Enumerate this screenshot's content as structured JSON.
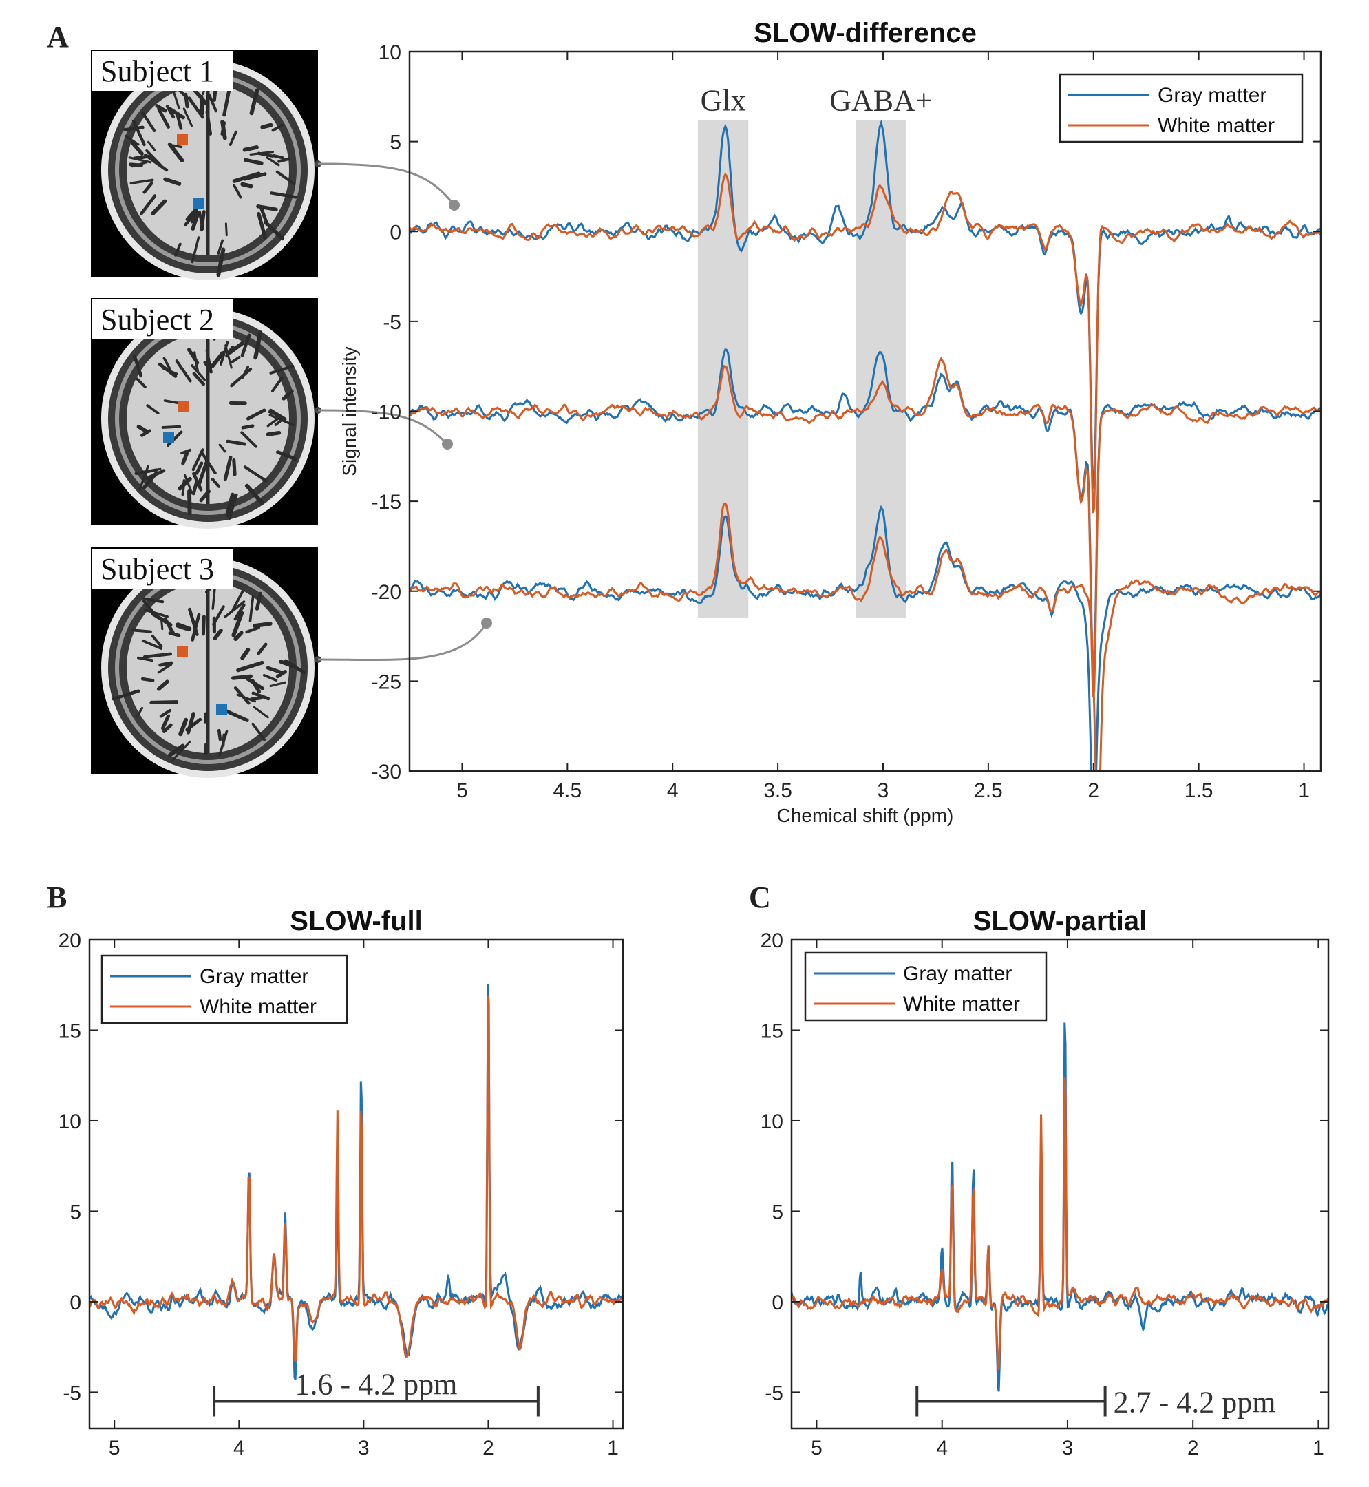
{
  "colors": {
    "gray_matter": "#1f72b4",
    "white_matter": "#d95b23",
    "region": "#d9d9d9",
    "axes": "#222222",
    "connector": "#8c8c8c"
  },
  "panel_letters": [
    "A",
    "B",
    "C"
  ],
  "subjects": [
    {
      "label": "Subject 1",
      "gm_voxel": "blue-square",
      "wm_voxel": "orange-square"
    },
    {
      "label": "Subject 2",
      "gm_voxel": "blue-square",
      "wm_voxel": "orange-square"
    },
    {
      "label": "Subject 3",
      "gm_voxel": "blue-square",
      "wm_voxel": "orange-square"
    }
  ],
  "chart_data": [
    {
      "id": "A",
      "type": "line",
      "title": "SLOW-difference",
      "xlabel": "Chemical shift (ppm)",
      "ylabel": "Signal intensity",
      "xlim": [
        5.25,
        0.92
      ],
      "x_reversed": true,
      "ylim": [
        -30,
        10
      ],
      "xticks": [
        5,
        4.5,
        4,
        3.5,
        3,
        2.5,
        2,
        1.5,
        1
      ],
      "yticks": [
        10,
        5,
        0,
        -5,
        -10,
        -15,
        -20,
        -25,
        -30
      ],
      "legend": {
        "position": "top-right",
        "entries": [
          "Gray matter",
          "White matter"
        ]
      },
      "shaded_regions": [
        {
          "label": "Glx",
          "x_range": [
            3.88,
            3.64
          ],
          "y_range": [
            -21.5,
            6.2
          ]
        },
        {
          "label": "GABA+",
          "x_range": [
            3.13,
            2.89
          ],
          "y_range": [
            -21.5,
            6.2
          ]
        }
      ],
      "series": [
        {
          "name": "Gray matter",
          "subject": "Subject 1",
          "baseline": 0,
          "peaks": [
            [
              3.75,
              6.2,
              0.035
            ],
            [
              3.69,
              -1.2,
              0.03
            ],
            [
              3.22,
              1.6,
              0.03
            ],
            [
              3.01,
              5.4,
              0.04
            ],
            [
              2.72,
              1.6,
              0.04
            ],
            [
              2.63,
              1.6,
              0.035
            ],
            [
              2.23,
              -1.2,
              0.02
            ],
            [
              2.0,
              -14.5,
              0.018
            ],
            [
              2.06,
              -4,
              0.03
            ],
            [
              1.36,
              0.9,
              0.02
            ]
          ],
          "noise": 0.45
        },
        {
          "name": "White matter",
          "subject": "Subject 1",
          "baseline": 0,
          "peaks": [
            [
              3.75,
              2.7,
              0.035
            ],
            [
              3.69,
              -0.7,
              0.03
            ],
            [
              3.01,
              2.3,
              0.045
            ],
            [
              2.68,
              1.8,
              0.04
            ],
            [
              2.63,
              1.5,
              0.035
            ],
            [
              2.23,
              -0.9,
              0.02
            ],
            [
              2.0,
              -16,
              0.018
            ],
            [
              2.06,
              -4,
              0.03
            ]
          ],
          "noise": 0.35
        },
        {
          "name": "Gray matter",
          "subject": "Subject 2",
          "baseline": -10,
          "peaks": [
            [
              3.75,
              3.2,
              0.035
            ],
            [
              3.8,
              -0.6,
              0.02
            ],
            [
              3.01,
              3.3,
              0.04
            ],
            [
              3.19,
              0.8,
              0.02
            ],
            [
              2.72,
              2.2,
              0.04
            ],
            [
              2.65,
              1.6,
              0.03
            ],
            [
              2.22,
              -1.2,
              0.02
            ],
            [
              2.0,
              -14.5,
              0.018
            ],
            [
              2.06,
              -5,
              0.03
            ]
          ],
          "noise": 0.4
        },
        {
          "name": "White matter",
          "subject": "Subject 2",
          "baseline": -10,
          "peaks": [
            [
              3.75,
              2.6,
              0.035
            ],
            [
              3.01,
              1.6,
              0.04
            ],
            [
              2.72,
              2.5,
              0.04
            ],
            [
              2.65,
              1.6,
              0.03
            ],
            [
              2.22,
              -1.0,
              0.02
            ],
            [
              2.0,
              -16,
              0.018
            ],
            [
              2.06,
              -5,
              0.03
            ]
          ],
          "noise": 0.35
        },
        {
          "name": "Gray matter",
          "subject": "Subject 3",
          "baseline": -20,
          "peaks": [
            [
              3.75,
              4.7,
              0.035
            ],
            [
              3.01,
              4.4,
              0.035
            ],
            [
              3.06,
              1.0,
              0.03
            ],
            [
              2.71,
              2.6,
              0.04
            ],
            [
              2.64,
              1.6,
              0.035
            ],
            [
              2.2,
              -1.2,
              0.02
            ],
            [
              2.0,
              -10,
              0.018
            ],
            [
              1.99,
              -4,
              0.05
            ]
          ],
          "noise": 0.4
        },
        {
          "name": "White matter",
          "subject": "Subject 3",
          "baseline": -20,
          "peaks": [
            [
              3.75,
              4.9,
              0.035
            ],
            [
              3.01,
              3.1,
              0.045
            ],
            [
              2.71,
              2.6,
              0.04
            ],
            [
              2.64,
              1.6,
              0.035
            ],
            [
              2.2,
              -1.0,
              0.02
            ],
            [
              1.98,
              -10,
              0.018
            ],
            [
              1.96,
              -4,
              0.05
            ]
          ],
          "noise": 0.38
        }
      ]
    },
    {
      "id": "B",
      "type": "line",
      "title": "SLOW-full",
      "xlabel": "",
      "ylabel": "",
      "xlim": [
        5.2,
        0.92
      ],
      "x_reversed": true,
      "ylim": [
        -7,
        20
      ],
      "xticks": [
        5,
        4,
        3,
        2,
        1
      ],
      "yticks": [
        20,
        15,
        10,
        5,
        0,
        -5
      ],
      "legend": {
        "position": "top-left",
        "entries": [
          "Gray matter",
          "White matter"
        ]
      },
      "range_bar": {
        "label": "1.6 - 4.2 ppm",
        "x_range": [
          4.2,
          1.6
        ],
        "y": -5.5
      },
      "series": [
        {
          "name": "Gray matter",
          "baseline": 0,
          "peaks": [
            [
              3.92,
              7.2,
              0.012
            ],
            [
              4.05,
              1.2,
              0.02
            ],
            [
              3.72,
              2.6,
              0.018
            ],
            [
              3.63,
              4.6,
              0.012
            ],
            [
              3.55,
              -4.4,
              0.015
            ],
            [
              3.21,
              5.8,
              0.01
            ],
            [
              3.02,
              13,
              0.01
            ],
            [
              2.65,
              -3.0,
              0.05
            ],
            [
              2.32,
              1.6,
              0.015
            ],
            [
              2.0,
              18.5,
              0.01
            ],
            [
              1.9,
              1.4,
              0.07
            ],
            [
              1.75,
              -2.6,
              0.04
            ],
            [
              3.4,
              -1.4,
              0.05
            ]
          ],
          "noise": 0.45
        },
        {
          "name": "White matter",
          "baseline": 0,
          "peaks": [
            [
              3.92,
              7.0,
              0.012
            ],
            [
              4.05,
              1.0,
              0.02
            ],
            [
              3.72,
              2.6,
              0.018
            ],
            [
              3.63,
              4.2,
              0.012
            ],
            [
              3.55,
              -3.6,
              0.015
            ],
            [
              3.21,
              10.4,
              0.01
            ],
            [
              3.02,
              11.6,
              0.01
            ],
            [
              2.65,
              -3.1,
              0.05
            ],
            [
              2.0,
              18.7,
              0.01
            ],
            [
              1.75,
              -2.6,
              0.04
            ],
            [
              3.4,
              -1.2,
              0.05
            ]
          ],
          "noise": 0.35
        }
      ]
    },
    {
      "id": "C",
      "type": "line",
      "title": "SLOW-partial",
      "xlabel": "",
      "ylabel": "",
      "xlim": [
        5.2,
        0.92
      ],
      "x_reversed": true,
      "ylim": [
        -7,
        20
      ],
      "xticks": [
        5,
        4,
        3,
        2,
        1
      ],
      "yticks": [
        20,
        15,
        10,
        5,
        0,
        -5
      ],
      "legend": {
        "position": "top-left",
        "entries": [
          "Gray matter",
          "White matter"
        ]
      },
      "range_bar": {
        "label": "2.7 - 4.2 ppm",
        "x_range": [
          4.2,
          2.7
        ],
        "y": -5.5
      },
      "series": [
        {
          "name": "Gray matter",
          "baseline": 0,
          "peaks": [
            [
              3.92,
              8.2,
              0.012
            ],
            [
              4.0,
              2.6,
              0.015
            ],
            [
              3.75,
              8.0,
              0.012
            ],
            [
              3.63,
              3.4,
              0.012
            ],
            [
              3.55,
              -5.1,
              0.015
            ],
            [
              3.21,
              7.2,
              0.01
            ],
            [
              3.02,
              16.6,
              0.01
            ],
            [
              2.95,
              0.8,
              0.03
            ],
            [
              2.4,
              -2.2,
              0.03
            ],
            [
              4.65,
              1.6,
              0.01
            ]
          ],
          "noise": 0.45
        },
        {
          "name": "White matter",
          "baseline": 0,
          "peaks": [
            [
              3.92,
              7.0,
              0.012
            ],
            [
              4.0,
              1.4,
              0.015
            ],
            [
              3.75,
              6.3,
              0.012
            ],
            [
              3.63,
              3.6,
              0.012
            ],
            [
              3.55,
              -4.2,
              0.015
            ],
            [
              3.21,
              10.7,
              0.01
            ],
            [
              3.02,
              13,
              0.01
            ],
            [
              2.95,
              0.8,
              0.03
            ],
            [
              2.45,
              0.8,
              0.03
            ]
          ],
          "noise": 0.35
        }
      ]
    }
  ]
}
